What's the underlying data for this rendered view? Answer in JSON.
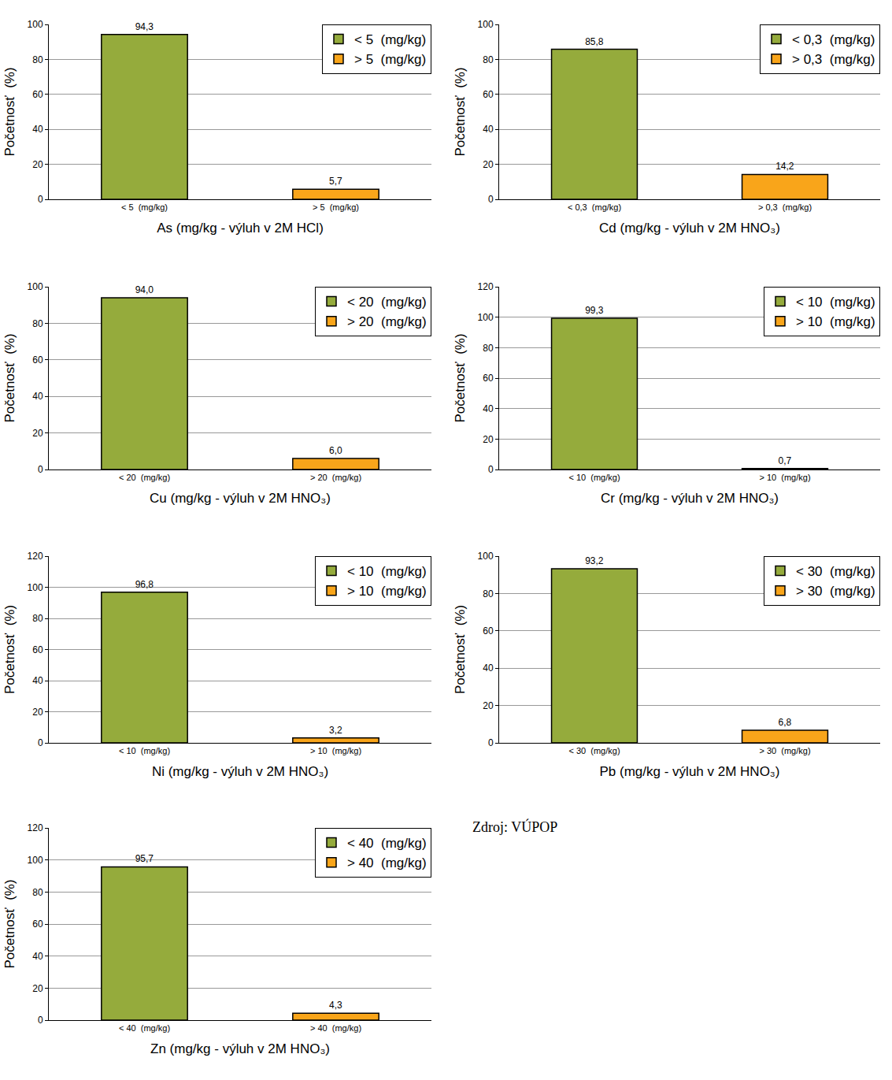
{
  "chart_data": [
    {
      "type": "bar",
      "x_label": "As (mg/kg - výluh v 2M HCl)",
      "y_label": "Početnosť  (%)",
      "categories": [
        "< 5  (mg/kg)",
        "> 5  (mg/kg)"
      ],
      "values": [
        94.3,
        5.7
      ],
      "value_labels": [
        "94,3",
        "5,7"
      ],
      "colors": [
        "#95ab3c",
        "#f9a51a"
      ],
      "ylim": [
        0,
        100
      ],
      "yticks": [
        0,
        20,
        40,
        60,
        80,
        100
      ],
      "grid": true,
      "legend": "top right",
      "data_labels": true
    },
    {
      "type": "bar",
      "x_label": "Cd (mg/kg - výluh v 2M HNO₃)",
      "y_label": "Početnosť  (%)",
      "categories": [
        "< 0,3  (mg/kg)",
        "> 0,3  (mg/kg)"
      ],
      "values": [
        85.8,
        14.2
      ],
      "value_labels": [
        "85,8",
        "14,2"
      ],
      "colors": [
        "#95ab3c",
        "#f9a51a"
      ],
      "ylim": [
        0,
        100
      ],
      "yticks": [
        0,
        20,
        40,
        60,
        80,
        100
      ],
      "grid": true,
      "legend": "top right",
      "data_labels": true
    },
    {
      "type": "bar",
      "x_label": "Cu (mg/kg - výluh v 2M HNO₃)",
      "y_label": "Početnosť  (%)",
      "categories": [
        "< 20  (mg/kg)",
        "> 20  (mg/kg)"
      ],
      "values": [
        94.0,
        6.0
      ],
      "value_labels": [
        "94,0",
        "6,0"
      ],
      "colors": [
        "#95ab3c",
        "#f9a51a"
      ],
      "ylim": [
        0,
        100
      ],
      "yticks": [
        0,
        20,
        40,
        60,
        80,
        100
      ],
      "grid": true,
      "legend": "top right",
      "data_labels": true
    },
    {
      "type": "bar",
      "x_label": "Cr (mg/kg - výluh v 2M HNO₃)",
      "y_label": "Početnosť  (%)",
      "categories": [
        "< 10  (mg/kg)",
        "> 10  (mg/kg)"
      ],
      "values": [
        99.3,
        0.7
      ],
      "value_labels": [
        "99,3",
        "0,7"
      ],
      "colors": [
        "#95ab3c",
        "#f9a51a"
      ],
      "ylim": [
        0,
        120
      ],
      "yticks": [
        0,
        20,
        40,
        60,
        80,
        100,
        120
      ],
      "grid": true,
      "legend": "top right",
      "data_labels": true
    },
    {
      "type": "bar",
      "x_label": "Ni (mg/kg - výluh v 2M HNO₃)",
      "y_label": "Početnosť  (%)",
      "categories": [
        "< 10  (mg/kg)",
        "> 10  (mg/kg)"
      ],
      "values": [
        96.8,
        3.2
      ],
      "value_labels": [
        "96,8",
        "3,2"
      ],
      "colors": [
        "#95ab3c",
        "#f9a51a"
      ],
      "ylim": [
        0,
        120
      ],
      "yticks": [
        0,
        20,
        40,
        60,
        80,
        100,
        120
      ],
      "grid": true,
      "legend": "top right",
      "data_labels": true
    },
    {
      "type": "bar",
      "x_label": "Pb (mg/kg - výluh v 2M HNO₃)",
      "y_label": "Početnosť  (%)",
      "categories": [
        "< 30  (mg/kg)",
        "> 30  (mg/kg)"
      ],
      "values": [
        93.2,
        6.8
      ],
      "value_labels": [
        "93,2",
        "6,8"
      ],
      "colors": [
        "#95ab3c",
        "#f9a51a"
      ],
      "ylim": [
        0,
        100
      ],
      "yticks": [
        0,
        20,
        40,
        60,
        80,
        100
      ],
      "grid": true,
      "legend": "top right",
      "data_labels": true
    },
    {
      "type": "bar",
      "x_label": "Zn (mg/kg - výluh v 2M HNO₃)",
      "y_label": "Početnosť  (%)",
      "categories": [
        "< 40  (mg/kg)",
        "> 40  (mg/kg)"
      ],
      "values": [
        95.7,
        4.3
      ],
      "value_labels": [
        "95,7",
        "4,3"
      ],
      "colors": [
        "#95ab3c",
        "#f9a51a"
      ],
      "ylim": [
        0,
        120
      ],
      "yticks": [
        0,
        20,
        40,
        60,
        80,
        100,
        120
      ],
      "grid": true,
      "legend": "top right",
      "data_labels": true
    }
  ],
  "source": "Zdroj: VÚPOP"
}
